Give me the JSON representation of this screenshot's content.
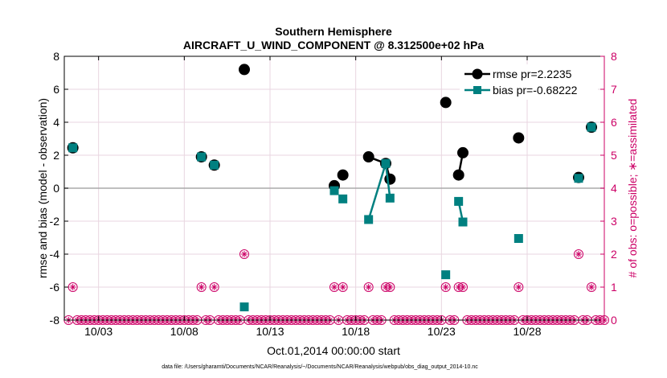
{
  "chart_data": {
    "type": "line",
    "title": "Southern Hemisphere",
    "subtitle": "AIRCRAFT_U_WIND_COMPONENT @ 8.312500e+02 hPa",
    "xlabel": "Oct.01,2014 00:00:00 start",
    "ylabel": "rmse and bias (model - observation)",
    "y2label": "# of obs: o=possible; ∗=assimilated",
    "footnote": "data file: /Users/gharamti/Documents/NCAR/Reanalysis/~/Documents/NCAR/Reanalysis/webpub/obs_diag_output_2014-10.nc",
    "xlim": [
      1.0,
      32.5
    ],
    "ylim": [
      -8,
      8
    ],
    "y2lim": [
      0,
      8
    ],
    "x_ticks": [
      3,
      8,
      13,
      18,
      23,
      28
    ],
    "x_tick_labels": [
      "10/03",
      "10/08",
      "10/13",
      "10/18",
      "10/23",
      "10/28"
    ],
    "y_ticks": [
      -8,
      -6,
      -4,
      -2,
      0,
      2,
      4,
      6,
      8
    ],
    "y_tick_labels": [
      "-8",
      "-6",
      "-4",
      "-2",
      "0",
      "2",
      "4",
      "6",
      "8"
    ],
    "y2_ticks": [
      0,
      1,
      2,
      3,
      4,
      5,
      6,
      7,
      8
    ],
    "y2_tick_labels": [
      "0",
      "1",
      "2",
      "3",
      "4",
      "5",
      "6",
      "7",
      "8"
    ],
    "grid": true,
    "legend_position": "top-right",
    "series": [
      {
        "name": "rmse pr=2.2235",
        "color": "#000000",
        "marker": "circle",
        "points": [
          [
            1.5,
            2.45
          ],
          [
            9.0,
            1.9
          ],
          [
            9.75,
            1.4
          ],
          [
            11.5,
            7.2
          ],
          [
            16.75,
            0.15
          ],
          [
            17.25,
            0.8
          ],
          [
            18.75,
            1.9
          ],
          [
            19.75,
            1.5
          ],
          [
            20.0,
            0.55
          ],
          [
            23.25,
            5.2
          ],
          [
            24.0,
            0.8
          ],
          [
            24.25,
            2.15
          ],
          [
            27.5,
            3.05
          ],
          [
            31.0,
            0.65
          ],
          [
            31.75,
            3.7
          ]
        ],
        "segments": [
          [
            6,
            7,
            8
          ],
          [
            10,
            11
          ]
        ]
      },
      {
        "name": "bias pr=-0.68222",
        "color": "#008080",
        "marker": "square",
        "points": [
          [
            1.5,
            2.45
          ],
          [
            9.0,
            1.9
          ],
          [
            9.75,
            1.4
          ],
          [
            11.5,
            -7.2
          ],
          [
            16.75,
            -0.15
          ],
          [
            17.25,
            -0.65
          ],
          [
            18.75,
            -1.9
          ],
          [
            19.75,
            1.5
          ],
          [
            20.0,
            -0.6
          ],
          [
            23.25,
            -5.25
          ],
          [
            24.0,
            -0.8
          ],
          [
            24.25,
            -2.05
          ],
          [
            27.5,
            -3.05
          ],
          [
            31.0,
            0.6
          ],
          [
            31.75,
            3.7
          ]
        ],
        "segments": [
          [
            6,
            7,
            8
          ],
          [
            10,
            11
          ]
        ]
      }
    ],
    "obs_counts": {
      "color": "#cc0066",
      "x_start": 1.25,
      "x_step": 0.25,
      "count": 126,
      "possible_nonzero": [
        [
          1.5,
          1
        ],
        [
          9.0,
          1
        ],
        [
          9.75,
          1
        ],
        [
          11.5,
          2
        ],
        [
          16.75,
          1
        ],
        [
          17.25,
          1
        ],
        [
          18.75,
          1
        ],
        [
          19.75,
          1
        ],
        [
          20.0,
          1
        ],
        [
          23.25,
          1
        ],
        [
          24.0,
          1
        ],
        [
          24.25,
          1
        ],
        [
          27.5,
          1
        ],
        [
          31.0,
          2
        ],
        [
          31.75,
          1
        ]
      ],
      "assimilated_nonzero": [
        [
          1.5,
          1
        ],
        [
          9.0,
          1
        ],
        [
          9.75,
          1
        ],
        [
          11.5,
          2
        ],
        [
          16.75,
          1
        ],
        [
          17.25,
          1
        ],
        [
          18.75,
          1
        ],
        [
          19.75,
          1
        ],
        [
          20.0,
          1
        ],
        [
          23.25,
          1
        ],
        [
          24.0,
          1
        ],
        [
          24.25,
          1
        ],
        [
          27.5,
          1
        ],
        [
          31.0,
          2
        ],
        [
          31.75,
          1
        ]
      ]
    }
  }
}
